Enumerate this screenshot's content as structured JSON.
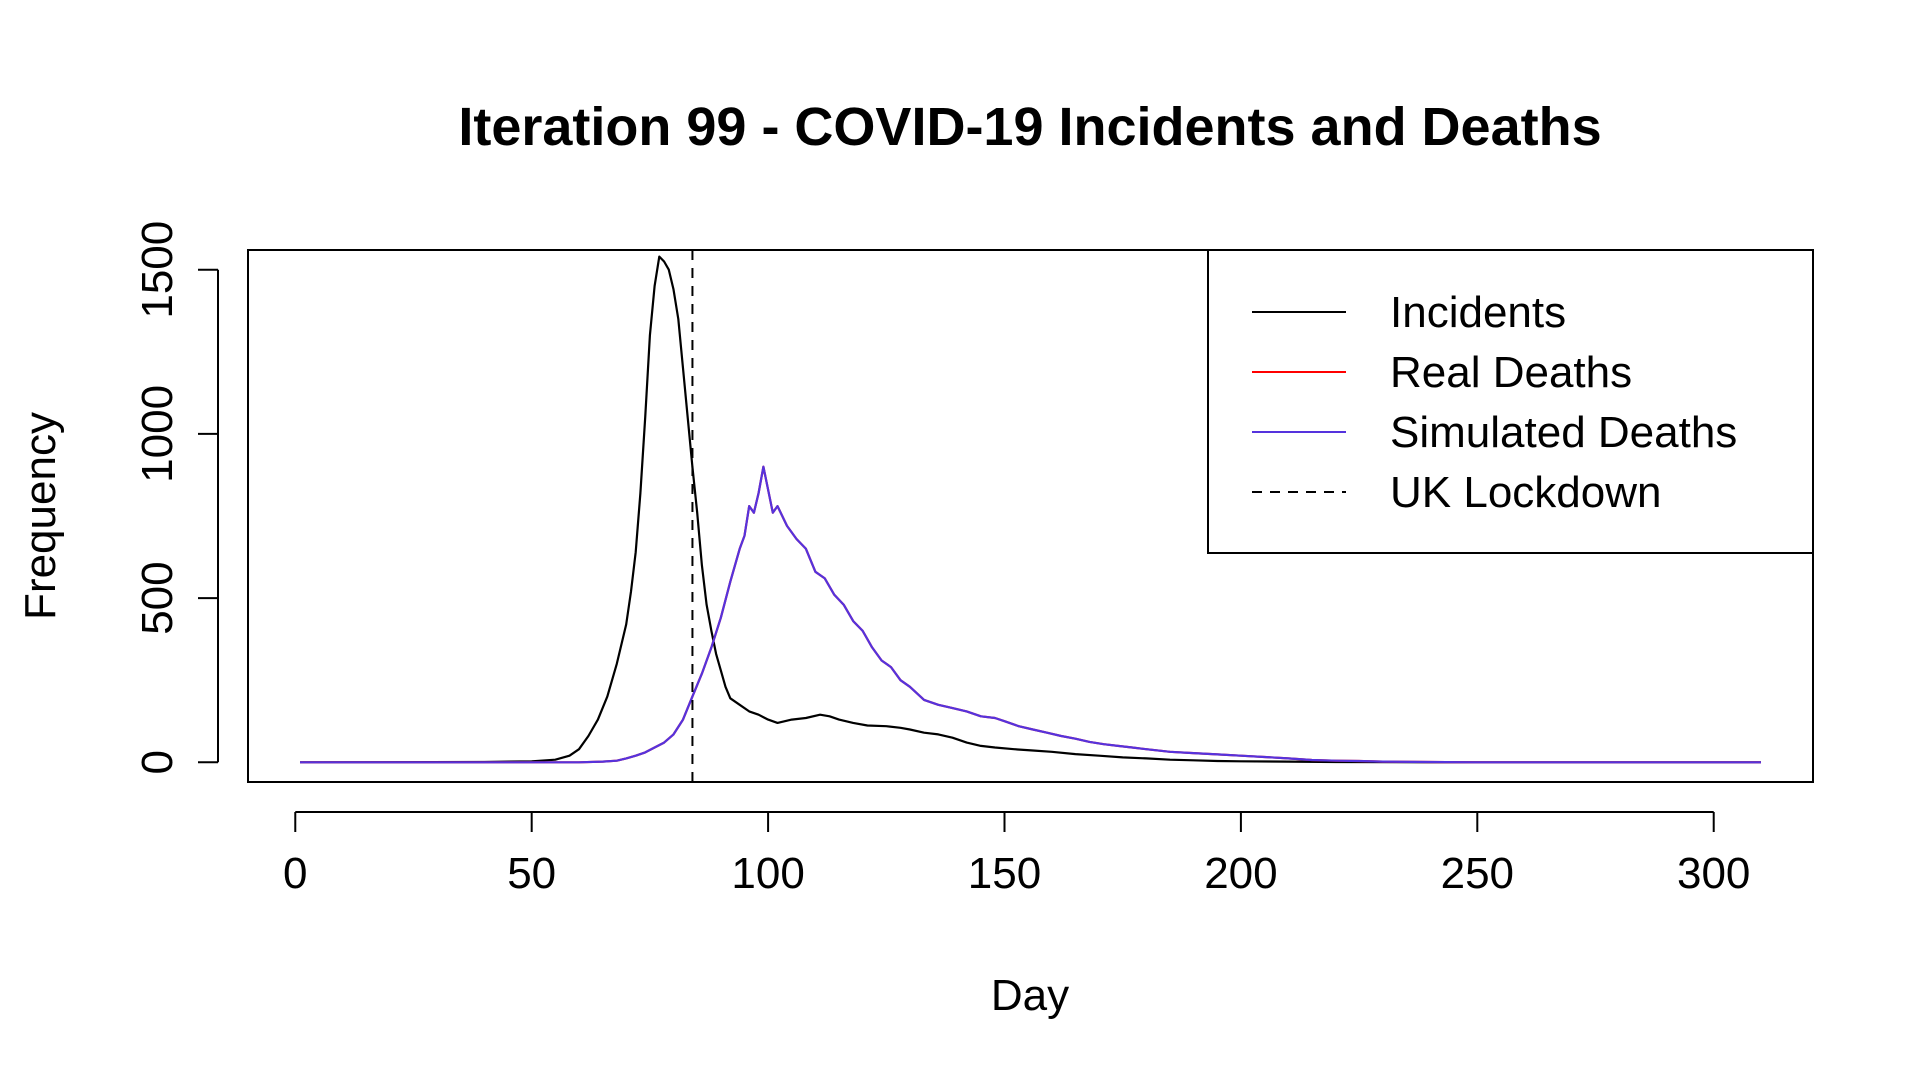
{
  "chart_data": {
    "type": "line",
    "title": "Iteration 99 - COVID-19 Incidents and Deaths",
    "xlabel": "Day",
    "ylabel": "Frequency",
    "xlim": [
      -10,
      321
    ],
    "ylim": [
      -60,
      1560
    ],
    "xticks": [
      0,
      50,
      100,
      150,
      200,
      250,
      300
    ],
    "yticks": [
      0,
      500,
      1000,
      1500
    ],
    "legend_position": "top-right",
    "series": [
      {
        "name": "Incidents",
        "color": "#000000",
        "style": "solid",
        "points": [
          [
            1,
            0
          ],
          [
            40,
            1
          ],
          [
            50,
            3
          ],
          [
            55,
            8
          ],
          [
            58,
            20
          ],
          [
            60,
            40
          ],
          [
            62,
            80
          ],
          [
            64,
            130
          ],
          [
            66,
            200
          ],
          [
            68,
            300
          ],
          [
            70,
            420
          ],
          [
            71,
            520
          ],
          [
            72,
            640
          ],
          [
            73,
            820
          ],
          [
            74,
            1050
          ],
          [
            75,
            1300
          ],
          [
            76,
            1450
          ],
          [
            77,
            1540
          ],
          [
            78,
            1525
          ],
          [
            79,
            1500
          ],
          [
            80,
            1440
          ],
          [
            81,
            1350
          ],
          [
            82,
            1200
          ],
          [
            83,
            1050
          ],
          [
            84,
            900
          ],
          [
            85,
            760
          ],
          [
            86,
            600
          ],
          [
            87,
            480
          ],
          [
            88,
            400
          ],
          [
            89,
            330
          ],
          [
            90,
            280
          ],
          [
            91,
            230
          ],
          [
            92,
            195
          ],
          [
            94,
            175
          ],
          [
            96,
            155
          ],
          [
            98,
            145
          ],
          [
            100,
            130
          ],
          [
            102,
            120
          ],
          [
            105,
            130
          ],
          [
            108,
            135
          ],
          [
            111,
            145
          ],
          [
            113,
            140
          ],
          [
            115,
            130
          ],
          [
            118,
            120
          ],
          [
            121,
            112
          ],
          [
            125,
            110
          ],
          [
            128,
            105
          ],
          [
            130,
            100
          ],
          [
            133,
            90
          ],
          [
            136,
            85
          ],
          [
            139,
            75
          ],
          [
            142,
            60
          ],
          [
            145,
            50
          ],
          [
            148,
            45
          ],
          [
            152,
            40
          ],
          [
            156,
            36
          ],
          [
            160,
            32
          ],
          [
            165,
            25
          ],
          [
            170,
            20
          ],
          [
            175,
            15
          ],
          [
            180,
            12
          ],
          [
            185,
            8
          ],
          [
            190,
            6
          ],
          [
            195,
            4
          ],
          [
            200,
            3
          ],
          [
            210,
            2
          ],
          [
            220,
            1
          ],
          [
            240,
            0
          ],
          [
            310,
            0
          ]
        ]
      },
      {
        "name": "Real Deaths",
        "color": "#ff0000",
        "style": "solid",
        "points": [
          [
            1,
            0
          ],
          [
            60,
            0
          ],
          [
            65,
            2
          ],
          [
            68,
            5
          ],
          [
            70,
            12
          ],
          [
            72,
            20
          ],
          [
            74,
            30
          ],
          [
            76,
            45
          ],
          [
            78,
            60
          ],
          [
            80,
            85
          ],
          [
            82,
            130
          ],
          [
            84,
            200
          ],
          [
            86,
            270
          ],
          [
            88,
            350
          ],
          [
            90,
            440
          ],
          [
            92,
            550
          ],
          [
            94,
            650
          ],
          [
            95,
            690
          ],
          [
            96,
            780
          ],
          [
            97,
            760
          ],
          [
            98,
            820
          ],
          [
            99,
            900
          ],
          [
            100,
            830
          ],
          [
            101,
            760
          ],
          [
            102,
            780
          ],
          [
            104,
            720
          ],
          [
            106,
            680
          ],
          [
            108,
            650
          ],
          [
            110,
            580
          ],
          [
            112,
            560
          ],
          [
            114,
            510
          ],
          [
            116,
            480
          ],
          [
            118,
            430
          ],
          [
            120,
            400
          ],
          [
            122,
            350
          ],
          [
            124,
            310
          ],
          [
            126,
            290
          ],
          [
            128,
            250
          ],
          [
            130,
            230
          ],
          [
            133,
            190
          ],
          [
            136,
            175
          ],
          [
            139,
            165
          ],
          [
            142,
            155
          ],
          [
            145,
            140
          ],
          [
            148,
            135
          ],
          [
            150,
            125
          ],
          [
            153,
            110
          ],
          [
            156,
            100
          ],
          [
            159,
            90
          ],
          [
            162,
            80
          ],
          [
            165,
            72
          ],
          [
            168,
            62
          ],
          [
            171,
            55
          ],
          [
            174,
            50
          ],
          [
            177,
            45
          ],
          [
            180,
            40
          ],
          [
            185,
            32
          ],
          [
            190,
            28
          ],
          [
            195,
            24
          ],
          [
            200,
            20
          ],
          [
            205,
            16
          ],
          [
            210,
            12
          ],
          [
            215,
            7
          ],
          [
            220,
            5
          ],
          [
            225,
            4
          ],
          [
            230,
            2
          ],
          [
            240,
            1
          ],
          [
            250,
            0
          ],
          [
            310,
            0
          ]
        ]
      },
      {
        "name": "Simulated Deaths",
        "color": "#5533dd",
        "style": "solid",
        "points": [
          [
            1,
            0
          ],
          [
            60,
            0
          ],
          [
            65,
            2
          ],
          [
            68,
            5
          ],
          [
            70,
            12
          ],
          [
            72,
            20
          ],
          [
            74,
            30
          ],
          [
            76,
            45
          ],
          [
            78,
            60
          ],
          [
            80,
            85
          ],
          [
            82,
            130
          ],
          [
            84,
            200
          ],
          [
            86,
            270
          ],
          [
            88,
            350
          ],
          [
            90,
            440
          ],
          [
            92,
            550
          ],
          [
            94,
            650
          ],
          [
            95,
            690
          ],
          [
            96,
            780
          ],
          [
            97,
            760
          ],
          [
            98,
            820
          ],
          [
            99,
            900
          ],
          [
            100,
            830
          ],
          [
            101,
            760
          ],
          [
            102,
            780
          ],
          [
            104,
            720
          ],
          [
            106,
            680
          ],
          [
            108,
            650
          ],
          [
            110,
            580
          ],
          [
            112,
            560
          ],
          [
            114,
            510
          ],
          [
            116,
            480
          ],
          [
            118,
            430
          ],
          [
            120,
            400
          ],
          [
            122,
            350
          ],
          [
            124,
            310
          ],
          [
            126,
            290
          ],
          [
            128,
            250
          ],
          [
            130,
            230
          ],
          [
            133,
            190
          ],
          [
            136,
            175
          ],
          [
            139,
            165
          ],
          [
            142,
            155
          ],
          [
            145,
            140
          ],
          [
            148,
            135
          ],
          [
            150,
            125
          ],
          [
            153,
            110
          ],
          [
            156,
            100
          ],
          [
            159,
            90
          ],
          [
            162,
            80
          ],
          [
            165,
            72
          ],
          [
            168,
            62
          ],
          [
            171,
            55
          ],
          [
            174,
            50
          ],
          [
            177,
            45
          ],
          [
            180,
            40
          ],
          [
            185,
            32
          ],
          [
            190,
            28
          ],
          [
            195,
            24
          ],
          [
            200,
            20
          ],
          [
            205,
            16
          ],
          [
            210,
            12
          ],
          [
            215,
            7
          ],
          [
            220,
            5
          ],
          [
            225,
            4
          ],
          [
            230,
            2
          ],
          [
            240,
            1
          ],
          [
            250,
            0
          ],
          [
            310,
            0
          ]
        ]
      },
      {
        "name": "UK Lockdown",
        "color": "#000000",
        "style": "dashed",
        "vline_x": 84
      }
    ]
  }
}
